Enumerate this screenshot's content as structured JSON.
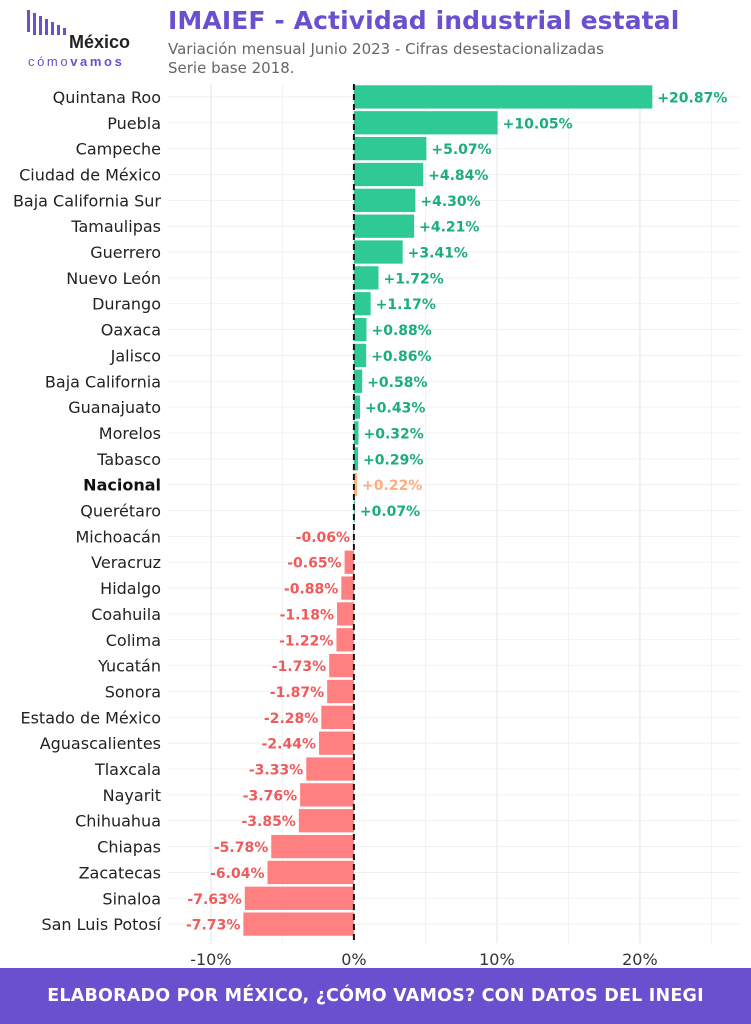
{
  "logo": {
    "brand": "México",
    "tagline_prefix": "cómo",
    "tagline_suffix": "vamos",
    "accent": "#6a4fcf"
  },
  "header": {
    "title": "IMAIEF - Actividad industrial estatal",
    "subtitle_line1": "Variación mensual Junio 2023 - Cifras desestacionalizadas",
    "subtitle_line2": "Serie base 2018."
  },
  "footer": {
    "text": "ELABORADO POR MÉXICO, ¿CÓMO VAMOS? CON DATOS DEL INEGI"
  },
  "colors": {
    "positive": "#2ec995",
    "positive_label": "#1aae7c",
    "negative": "#ff8080",
    "negative_label": "#f05a5a",
    "national": "#ffb07a",
    "national_label": "#ffad7d"
  },
  "chart_data": {
    "type": "bar",
    "orientation": "horizontal",
    "categories": [
      "Quintana Roo",
      "Puebla",
      "Campeche",
      "Ciudad de México",
      "Baja California Sur",
      "Tamaulipas",
      "Guerrero",
      "Nuevo León",
      "Durango",
      "Oaxaca",
      "Jalisco",
      "Baja California",
      "Guanajuato",
      "Morelos",
      "Tabasco",
      "Nacional",
      "Querétaro",
      "Michoacán",
      "Veracruz",
      "Hidalgo",
      "Coahuila",
      "Colima",
      "Yucatán",
      "Sonora",
      "Estado de México",
      "Aguascalientes",
      "Tlaxcala",
      "Nayarit",
      "Chihuahua",
      "Chiapas",
      "Zacatecas",
      "Sinaloa",
      "San Luis Potosí"
    ],
    "values": [
      20.87,
      10.05,
      5.07,
      4.84,
      4.3,
      4.21,
      3.41,
      1.72,
      1.17,
      0.88,
      0.86,
      0.58,
      0.43,
      0.32,
      0.29,
      0.22,
      0.07,
      -0.06,
      -0.65,
      -0.88,
      -1.18,
      -1.22,
      -1.73,
      -1.87,
      -2.28,
      -2.44,
      -3.33,
      -3.76,
      -3.85,
      -5.78,
      -6.04,
      -7.63,
      -7.73
    ],
    "data_labels": [
      "+20.87%",
      "+10.05%",
      "+5.07%",
      "+4.84%",
      "+4.30%",
      "+4.21%",
      "+3.41%",
      "+1.72%",
      "+1.17%",
      "+0.88%",
      "+0.86%",
      "+0.58%",
      "+0.43%",
      "+0.32%",
      "+0.29%",
      "+0.22%",
      "+0.07%",
      "-0.06%",
      "-0.65%",
      "-0.88%",
      "-1.18%",
      "-1.22%",
      "-1.73%",
      "-1.87%",
      "-2.28%",
      "-2.44%",
      "-3.33%",
      "-3.76%",
      "-3.85%",
      "-5.78%",
      "-6.04%",
      "-7.63%",
      "-7.73%"
    ],
    "highlight": "Nacional",
    "xlim": [
      -13,
      27
    ],
    "xticks": [
      -10,
      0,
      10,
      20
    ],
    "xtick_labels": [
      "-10%",
      "0%",
      "10%",
      "20%"
    ],
    "grid": true,
    "reference_line": 0
  }
}
